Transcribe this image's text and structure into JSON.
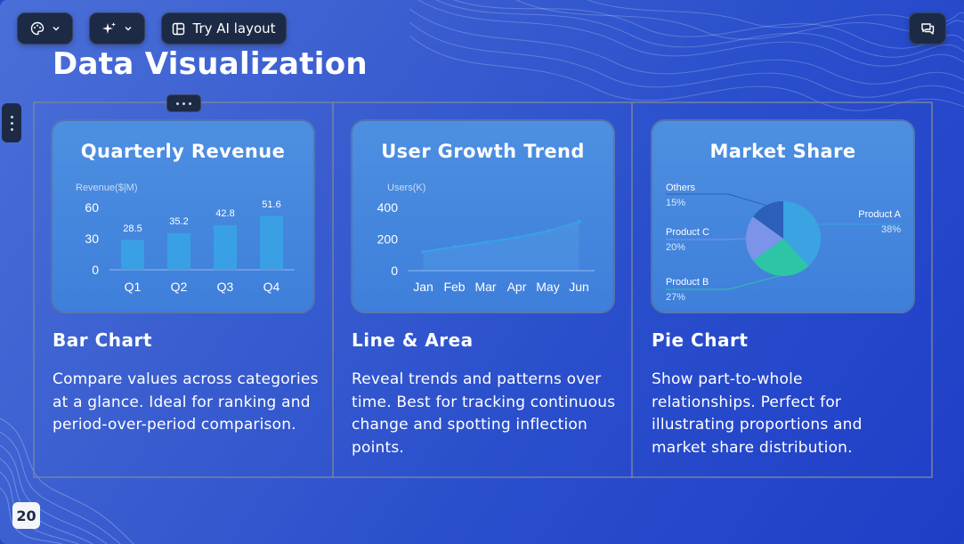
{
  "toolbar": {
    "ai_layout_label": "Try AI layout",
    "theme_icon": "palette-icon",
    "magic_icon": "sparkle-icon",
    "layout_icon": "layout-icon",
    "comment_icon": "comment-icon"
  },
  "title": "Data Visualization",
  "page_number": "20",
  "colors": {
    "accent_bar": "#3aa0e6",
    "pie_a": "#3ba3e2",
    "pie_b": "#2ec4a6",
    "pie_c": "#7b93e8",
    "pie_others": "#2b5fb8"
  },
  "cards": [
    {
      "title": "Quarterly Revenue",
      "section_title": "Bar Chart",
      "description": "Compare values across categories at a glance. Ideal for ranking and period-over-period comparison."
    },
    {
      "title": "User Growth Trend",
      "section_title": "Line & Area",
      "description": "Reveal trends and patterns over time. Best for tracking continuous change and spotting inflection points."
    },
    {
      "title": "Market Share",
      "section_title": "Pie Chart",
      "description": "Show part-to-whole relationships. Perfect for illustrating proportions and market share distribution."
    }
  ],
  "chart_data": [
    {
      "type": "bar",
      "title": "Quarterly Revenue",
      "ylabel": "Revenue($|M)",
      "categories": [
        "Q1",
        "Q2",
        "Q3",
        "Q4"
      ],
      "values": [
        28.5,
        35.2,
        42.8,
        51.6
      ],
      "yticks": [
        0,
        30,
        60
      ],
      "ylim": [
        0,
        60
      ],
      "grid": false
    },
    {
      "type": "line",
      "title": "User Growth Trend",
      "ylabel": "Users(K)",
      "categories": [
        "Jan",
        "Feb",
        "Mar",
        "Apr",
        "May",
        "Jun"
      ],
      "values": [
        120,
        150,
        180,
        210,
        250,
        310
      ],
      "yticks": [
        0,
        200,
        400
      ],
      "ylim": [
        0,
        400
      ],
      "grid": false
    },
    {
      "type": "pie",
      "title": "Market Share",
      "slices": [
        {
          "label": "Product A",
          "value": 38,
          "pct_label": "38%"
        },
        {
          "label": "Product B",
          "value": 27,
          "pct_label": "27%"
        },
        {
          "label": "Product C",
          "value": 20,
          "pct_label": "20%"
        },
        {
          "label": "Others",
          "value": 15,
          "pct_label": "15%"
        }
      ]
    }
  ]
}
